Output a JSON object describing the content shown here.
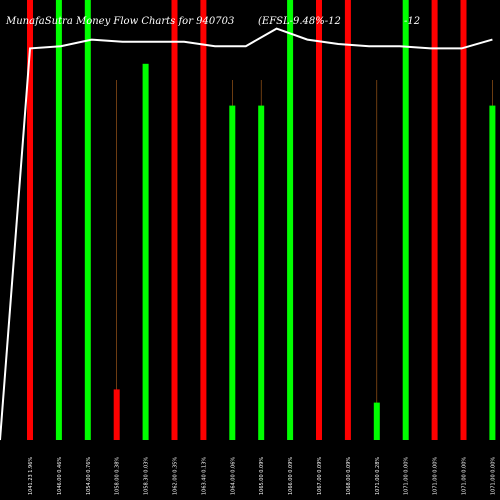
{
  "chart_data": {
    "type": "bar",
    "title_left": "MunafaSutra  Money Flow  Charts for 940703",
    "title_right": "(EFSL-9.48%-12",
    "title_far_right": "-12",
    "ylim": [
      0,
      100
    ],
    "categories": [
      "1041.23  1.96%",
      "1046.00  0.46%",
      "1054.00  0.76%",
      "1058.00  0.38%",
      "1058.30  0.03%",
      "1062.00  0.35%",
      "1063.40  0.13%",
      "1064.00  0.06%",
      "1065.00  0.09%",
      "1066.00  0.09%",
      "1067.00  0.09%",
      "1068.00  0.09%",
      "1071.00  0.28%",
      "1071.00  0.00%",
      "1071.00  0.00%",
      "1071.00  0.00%",
      "1071.00  0.00%"
    ],
    "bars": [
      {
        "color": "red",
        "value": 100
      },
      {
        "color": "green",
        "value": 100
      },
      {
        "color": "green",
        "value": 100
      },
      {
        "color": "red",
        "value": 11.5
      },
      {
        "color": "green",
        "value": 85.5
      },
      {
        "color": "red",
        "value": 100
      },
      {
        "color": "red",
        "value": 100
      },
      {
        "color": "green",
        "value": 76
      },
      {
        "color": "green",
        "value": 76
      },
      {
        "color": "green",
        "value": 100
      },
      {
        "color": "red",
        "value": 100
      },
      {
        "color": "red",
        "value": 100
      },
      {
        "color": "green",
        "value": 8.5
      },
      {
        "color": "green",
        "value": 100
      },
      {
        "color": "red",
        "value": 100
      },
      {
        "color": "red",
        "value": 100
      },
      {
        "color": "green",
        "value": 76
      }
    ],
    "price_line": [
      0,
      89,
      89.5,
      91,
      90.5,
      90.5,
      90.5,
      89.5,
      89.5,
      93.5,
      91,
      90,
      89.5,
      89.5,
      89,
      89,
      91
    ],
    "colors": {
      "background": "#000000",
      "red": "#ff0000",
      "green": "#00ff00",
      "line": "#ffffff",
      "guide": "#b5651d",
      "text": "#ffffff"
    }
  }
}
